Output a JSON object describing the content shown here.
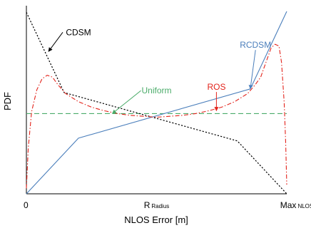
{
  "chart_data": {
    "type": "line",
    "title": "",
    "xlabel": "NLOS Error [m]",
    "ylabel": "PDF",
    "xlim": [
      0,
      1
    ],
    "ylim": [
      0,
      1
    ],
    "x_ticks": [
      {
        "x": 0,
        "label": "0",
        "sub": ""
      },
      {
        "x": 0.5,
        "label": "R",
        "sub": "Radius"
      },
      {
        "x": 1,
        "label": "Max",
        "sub": "NLOS"
      }
    ],
    "grid": false,
    "legend": "none (series labelled by callout annotations)",
    "series": [
      {
        "name": "CDSM",
        "color": "#000000",
        "dash": "dotted",
        "points": [
          [
            0,
            0.995
          ],
          [
            0.145,
            0.555
          ],
          [
            0.81,
            0.29
          ],
          [
            1,
            0.0
          ]
        ]
      },
      {
        "name": "RCDSM",
        "color": "#4a7ebb",
        "dash": "solid",
        "points": [
          [
            0,
            0.0
          ],
          [
            0.2,
            0.305
          ],
          [
            0.86,
            0.575
          ],
          [
            1,
            1.0
          ]
        ]
      },
      {
        "name": "Uniform",
        "color": "#4bac6a",
        "dash": "dashed",
        "points": [
          [
            0,
            0.44
          ],
          [
            1,
            0.44
          ]
        ]
      },
      {
        "name": "ROS",
        "color": "#e3231b",
        "dash": "dashdot",
        "points": [
          [
            0.0,
            0.03
          ],
          [
            0.007,
            0.25
          ],
          [
            0.02,
            0.45
          ],
          [
            0.04,
            0.57
          ],
          [
            0.06,
            0.63
          ],
          [
            0.08,
            0.65
          ],
          [
            0.1,
            0.64
          ],
          [
            0.12,
            0.6
          ],
          [
            0.15,
            0.55
          ],
          [
            0.2,
            0.505
          ],
          [
            0.25,
            0.475
          ],
          [
            0.3,
            0.455
          ],
          [
            0.35,
            0.44
          ],
          [
            0.4,
            0.43
          ],
          [
            0.45,
            0.425
          ],
          [
            0.5,
            0.42
          ],
          [
            0.55,
            0.425
          ],
          [
            0.6,
            0.43
          ],
          [
            0.65,
            0.44
          ],
          [
            0.7,
            0.455
          ],
          [
            0.75,
            0.475
          ],
          [
            0.8,
            0.505
          ],
          [
            0.85,
            0.55
          ],
          [
            0.88,
            0.6
          ],
          [
            0.9,
            0.64
          ],
          [
            0.92,
            0.72
          ],
          [
            0.94,
            0.8
          ],
          [
            0.955,
            0.82
          ],
          [
            0.97,
            0.81
          ],
          [
            0.98,
            0.72
          ],
          [
            0.99,
            0.5
          ],
          [
            0.996,
            0.28
          ],
          [
            1.0,
            0.05
          ]
        ]
      }
    ],
    "annotations": [
      {
        "text": "CDSM",
        "series": "CDSM",
        "color": "#000000",
        "text_at": [
          0.2,
          0.87
        ],
        "arrow_to": [
          0.085,
          0.78
        ]
      },
      {
        "text": "RCDSM",
        "series": "RCDSM",
        "color": "#4a7ebb",
        "text_at": [
          0.88,
          0.8
        ],
        "arrow_to": [
          0.86,
          0.575
        ]
      },
      {
        "text": "Uniform",
        "series": "Uniform",
        "color": "#4bac6a",
        "text_at": [
          0.5,
          0.55
        ],
        "arrow_to": [
          0.33,
          0.44
        ]
      },
      {
        "text": "ROS",
        "series": "ROS",
        "color": "#e3231b",
        "text_at": [
          0.73,
          0.57
        ],
        "arrow_to": [
          0.73,
          0.455
        ]
      }
    ]
  }
}
